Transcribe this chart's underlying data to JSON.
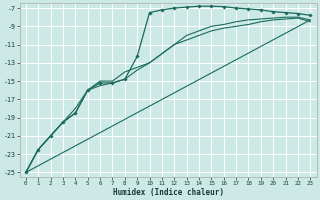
{
  "xlabel": "Humidex (Indice chaleur)",
  "bg_color": "#cce9e5",
  "grid_color": "#ffffff",
  "line_color": "#1a6b5e",
  "xlim": [
    -0.5,
    23.5
  ],
  "ylim": [
    -25.5,
    -6.5
  ],
  "xticks": [
    0,
    1,
    2,
    3,
    4,
    5,
    6,
    7,
    8,
    9,
    10,
    11,
    12,
    13,
    14,
    15,
    16,
    17,
    18,
    19,
    20,
    21,
    22,
    23
  ],
  "yticks": [
    -25,
    -23,
    -21,
    -19,
    -17,
    -15,
    -13,
    -11,
    -9,
    -7
  ],
  "line1_x": [
    0,
    1,
    2,
    3,
    4,
    5,
    6,
    7,
    8,
    9,
    10,
    11,
    12,
    13,
    14,
    15,
    16,
    17,
    18,
    19,
    20,
    21,
    22,
    23
  ],
  "line1_y": [
    -25,
    -22.5,
    -21,
    -19.5,
    -18.5,
    -16,
    -15.2,
    -15.2,
    -14.8,
    -12.3,
    -7.5,
    -7.2,
    -7.0,
    -6.9,
    -6.8,
    -6.8,
    -6.85,
    -7.0,
    -7.1,
    -7.2,
    -7.4,
    -7.5,
    -7.6,
    -7.8
  ],
  "line2_x": [
    0,
    1,
    2,
    3,
    4,
    5,
    6,
    7,
    8,
    9,
    10,
    11,
    12,
    13,
    14,
    15,
    16,
    17,
    18,
    19,
    20,
    21,
    22,
    23
  ],
  "line2_y": [
    -25,
    -22.5,
    -21,
    -19.5,
    -18.5,
    -16,
    -15,
    -15,
    -14,
    -13.5,
    -13,
    -12,
    -11,
    -10,
    -9.5,
    -9,
    -8.8,
    -8.5,
    -8.3,
    -8.2,
    -8.1,
    -8.0,
    -8.0,
    -8.3
  ],
  "line3_x": [
    0,
    23
  ],
  "line3_y": [
    -25,
    -8.3
  ],
  "line4_x": [
    0,
    1,
    2,
    3,
    4,
    5,
    6,
    7,
    8,
    9,
    10,
    11,
    12,
    13,
    14,
    15,
    16,
    17,
    18,
    19,
    20,
    21,
    22,
    23
  ],
  "line4_y": [
    -25,
    -22.5,
    -21,
    -19.5,
    -18,
    -16,
    -15.5,
    -15.2,
    -14.8,
    -13.8,
    -13,
    -12,
    -11,
    -10.5,
    -10,
    -9.5,
    -9.2,
    -9.0,
    -8.8,
    -8.5,
    -8.3,
    -8.2,
    -8.1,
    -8.5
  ]
}
